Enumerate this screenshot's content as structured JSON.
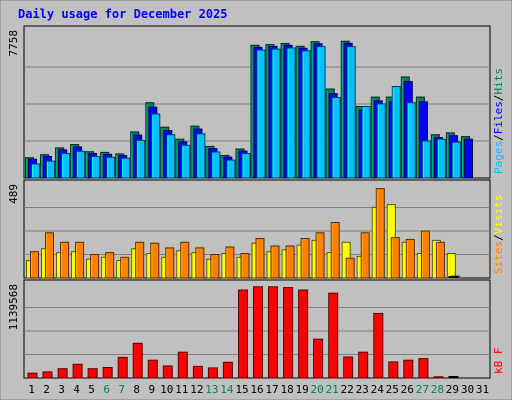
{
  "chart_data": {
    "type": "bar",
    "title": "Daily usage for December 2025",
    "days": [
      "1",
      "2",
      "3",
      "4",
      "5",
      "6",
      "7",
      "8",
      "9",
      "10",
      "11",
      "12",
      "13",
      "14",
      "15",
      "16",
      "17",
      "18",
      "19",
      "20",
      "21",
      "22",
      "23",
      "24",
      "25",
      "26",
      "27",
      "28",
      "29",
      "30",
      "31"
    ],
    "weekend_days": [
      "6",
      "7",
      "13",
      "14",
      "20",
      "21",
      "27",
      "28"
    ],
    "grid": true,
    "legend_placement": "right",
    "colors": {
      "background": "#c0c0c0",
      "title": "#0000ff",
      "hits": "#00805c",
      "files": "#0000ff",
      "pages": "#00c0ff",
      "visits": "#ffff00",
      "sites": "#ff8000",
      "kbytes": "#ff0000",
      "weekday_label": "#000000",
      "weekend_label": "#00805c"
    },
    "panels": [
      {
        "id": "hits-files-pages",
        "ymax_label": "7758",
        "ylim": [
          0,
          7758
        ],
        "legend": [
          "Pages",
          "Files",
          "Hits"
        ],
        "series": [
          {
            "key": "hits",
            "values": [
              1080,
              1240,
              1600,
              1780,
              1400,
              1360,
              1280,
              2450,
              4000,
              2700,
              2060,
              2760,
              1680,
              1200,
              1540,
              7050,
              7090,
              7150,
              7000,
              7240,
              4730,
              7270,
              3800,
              4300,
              4300,
              5370,
              4300,
              2300,
              2400,
              2200,
              0
            ]
          },
          {
            "key": "files",
            "values": [
              1000,
              1150,
              1500,
              1650,
              1300,
              1260,
              1190,
              2280,
              3760,
              2520,
              1920,
              2600,
              1560,
              1110,
              1430,
              6940,
              6990,
              7050,
              6890,
              7130,
              4480,
              7160,
              3600,
              4100,
              4050,
              5120,
              4050,
              2150,
              2250,
              2060,
              0
            ]
          },
          {
            "key": "pages",
            "values": [
              750,
              900,
              1300,
              1420,
              1140,
              1100,
              1050,
              2000,
              3400,
              2300,
              1740,
              2350,
              1380,
              950,
              1300,
              6800,
              6850,
              6910,
              6760,
              6980,
              4280,
              6980,
              3800,
              3940,
              4860,
              4000,
              1970,
              2060,
              1900,
              0,
              0
            ]
          }
        ]
      },
      {
        "id": "visits-sites",
        "ymax_label": "489",
        "ylim": [
          0,
          489
        ],
        "legend": [
          "Sites",
          "Visits"
        ],
        "series": [
          {
            "key": "visits",
            "values": [
              92,
              155,
              135,
              140,
              100,
              110,
              93,
              155,
              130,
              110,
              145,
              135,
              100,
              130,
              110,
              185,
              140,
              150,
              175,
              200,
              135,
              190,
              115,
              375,
              390,
              190,
              130,
              200,
              130,
              0,
              0
            ]
          },
          {
            "key": "sites",
            "values": [
              140,
              240,
              190,
              190,
              125,
              135,
              110,
              190,
              185,
              160,
              190,
              160,
              125,
              165,
              130,
              210,
              170,
              170,
              210,
              240,
              295,
              105,
              240,
              475,
              215,
              205,
              250,
              190,
              10,
              0,
              0
            ]
          }
        ]
      },
      {
        "id": "kbytes",
        "ymax_label": "1139568",
        "ylim": [
          0,
          1139568
        ],
        "legend": [
          "kB F"
        ],
        "series": [
          {
            "key": "kbytes",
            "values": [
              60000,
              75000,
              115000,
              170000,
              115000,
              130000,
              255000,
              430000,
              220000,
              150000,
              320000,
              145000,
              125000,
              195000,
              1090000,
              1130000,
              1130000,
              1120000,
              1090000,
              480000,
              1050000,
              260000,
              320000,
              800000,
              200000,
              220000,
              240000,
              15000,
              0,
              0,
              0
            ]
          }
        ]
      }
    ]
  }
}
